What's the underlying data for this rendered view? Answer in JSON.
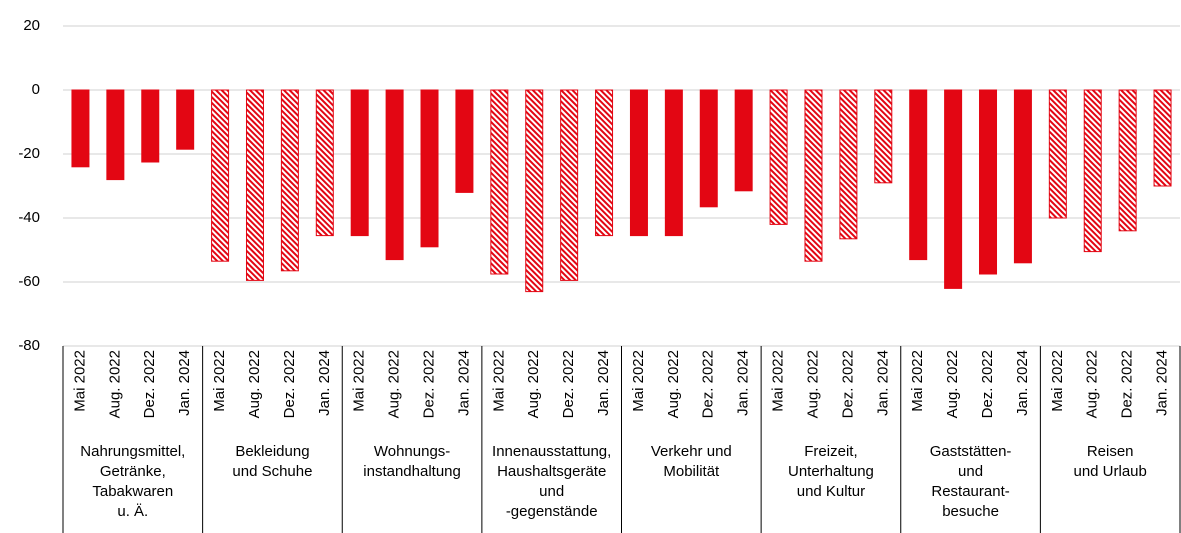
{
  "chart_data": {
    "type": "bar",
    "color": "#e30613",
    "subcategories": [
      "Mai 2022",
      "Aug. 2022",
      "Dez. 2022",
      "Jan. 2024"
    ],
    "groups": [
      {
        "label": [
          "Nahrungsmittel,",
          "Getränke,",
          "Tabakwaren",
          "u. Ä."
        ],
        "pattern": "solid",
        "values": [
          -24,
          -28,
          -22.5,
          -18.5
        ]
      },
      {
        "label": [
          "Bekleidung",
          "und Schuhe"
        ],
        "pattern": "hatched",
        "values": [
          -53.5,
          -59.5,
          -56.5,
          -45.5
        ]
      },
      {
        "label": [
          "Wohnungs-",
          "instandhaltung"
        ],
        "pattern": "solid",
        "values": [
          -45.5,
          -53,
          -49,
          -32
        ]
      },
      {
        "label": [
          "Innenausstattung,",
          "Haushaltsgeräte",
          "und",
          "-gegenstände"
        ],
        "pattern": "hatched",
        "values": [
          -57.5,
          -63,
          -59.5,
          -45.5
        ]
      },
      {
        "label": [
          "Verkehr und",
          "Mobilität"
        ],
        "pattern": "solid",
        "values": [
          -45.5,
          -45.5,
          -36.5,
          -31.5
        ]
      },
      {
        "label": [
          "Freizeit,",
          "Unterhaltung",
          "und Kultur"
        ],
        "pattern": "hatched",
        "values": [
          -42,
          -53.5,
          -46.5,
          -29
        ]
      },
      {
        "label": [
          "Gaststätten-",
          "und",
          "Restaurant-",
          "besuche"
        ],
        "pattern": "solid",
        "values": [
          -53,
          -62,
          -57.5,
          -54
        ]
      },
      {
        "label": [
          "Reisen",
          "und Urlaub"
        ],
        "pattern": "hatched",
        "values": [
          -40,
          -50.5,
          -44,
          -30
        ]
      }
    ],
    "ylim": [
      -80,
      20
    ],
    "yticks": [
      -80,
      -60,
      -40,
      -20,
      0,
      20
    ],
    "grid": true
  }
}
